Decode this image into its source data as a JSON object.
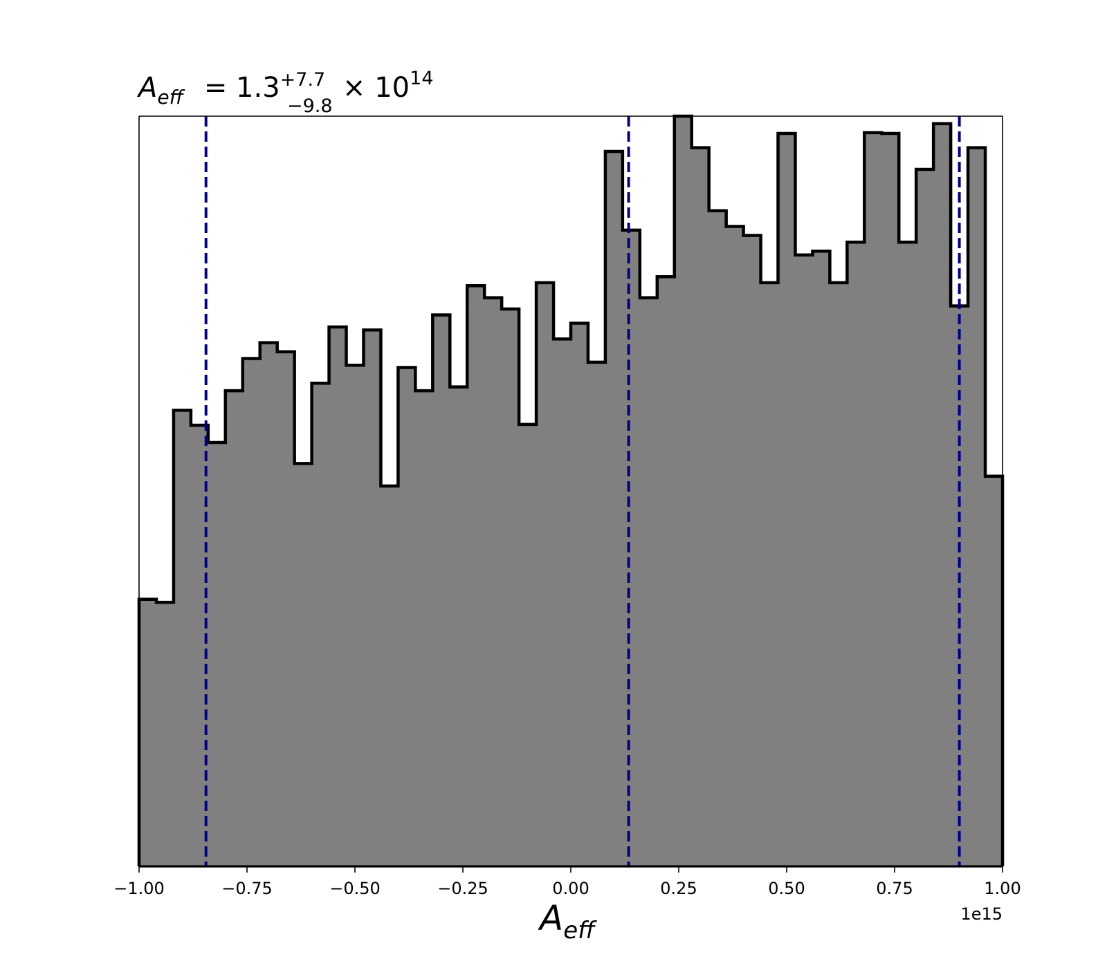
{
  "chart_data": {
    "type": "histogram",
    "title": {
      "symbol": "A",
      "subscript": "eff",
      "equals": "= 1.3",
      "plus": "+7.7",
      "minus": "−9.8",
      "times": "× 10",
      "exponent": "14"
    },
    "xlabel": {
      "symbol": "A",
      "subscript": "eff"
    },
    "x_offset_label": "1e15",
    "xlim": [
      -1.0,
      1.0
    ],
    "ylim": [
      0,
      1.0
    ],
    "y_axis_visible": false,
    "grid": false,
    "xticks": [
      -1.0,
      -0.75,
      -0.5,
      -0.25,
      0.0,
      0.25,
      0.5,
      0.75,
      1.0
    ],
    "xtick_labels": [
      "−1.00",
      "−0.75",
      "−0.50",
      "−0.25",
      "0.00",
      "0.25",
      "0.50",
      "0.75",
      "1.00"
    ],
    "bin_edges_range": [
      -1.0,
      1.0
    ],
    "bin_count": 50,
    "counts": [
      0.356,
      0.352,
      0.608,
      0.588,
      0.565,
      0.634,
      0.677,
      0.698,
      0.686,
      0.537,
      0.644,
      0.719,
      0.668,
      0.715,
      0.507,
      0.665,
      0.634,
      0.735,
      0.639,
      0.774,
      0.758,
      0.743,
      0.589,
      0.778,
      0.703,
      0.724,
      0.672,
      0.953,
      0.848,
      0.758,
      0.786,
      1.0,
      0.958,
      0.874,
      0.853,
      0.841,
      0.778,
      0.977,
      0.815,
      0.82,
      0.778,
      0.832,
      0.978,
      0.977,
      0.832,
      0.929,
      0.99,
      0.747,
      0.958,
      0.52
    ],
    "quantile_lines": [
      -0.845,
      0.134,
      0.9
    ],
    "colors": {
      "fill": "#808080",
      "edge": "#000000",
      "quantile_line": "#00008b"
    }
  }
}
